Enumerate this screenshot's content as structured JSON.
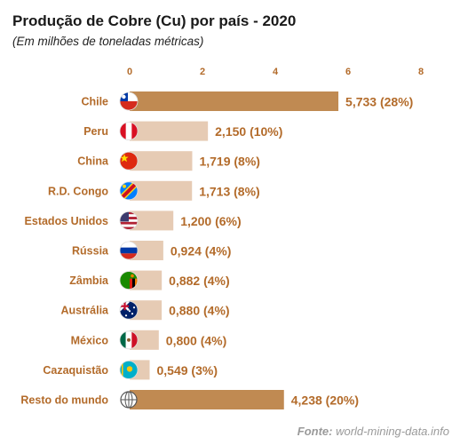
{
  "title": "Produção de Cobre (Cu) por país - 2020",
  "subtitle": "(Em milhões de toneladas métricas)",
  "source": {
    "label": "Fonte:",
    "text": " world-mining-data.info"
  },
  "colors": {
    "highlight_bar": "#c08a52",
    "regular_bar": "#e6cbb4",
    "label_text": "#b36b2a",
    "value_text": "#b36b2a",
    "axis_text": "#b36b2a"
  },
  "chart_data": {
    "type": "bar",
    "orientation": "horizontal",
    "xlim": [
      0,
      8
    ],
    "xticks": [
      0,
      2,
      4,
      6,
      8
    ],
    "grid": false,
    "categories": [
      "Chile",
      "Peru",
      "China",
      "R.D. Congo",
      "Estados Unidos",
      "Rússia",
      "Zâmbia",
      "Austrália",
      "México",
      "Cazaquistão",
      "Resto do mundo"
    ],
    "values": [
      5.733,
      2.15,
      1.719,
      1.713,
      1.2,
      0.924,
      0.882,
      0.88,
      0.8,
      0.549,
      4.238
    ],
    "value_labels": [
      "5,733 (28%)",
      "2,150 (10%)",
      "1,719 (8%)",
      "1,713 (8%)",
      "1,200 (6%)",
      "0,924 (4%)",
      "0,882 (4%)",
      "0,880 (4%)",
      "0,800 (4%)",
      "0,549 (3%)",
      "4,238 (20%)"
    ],
    "highlighted": [
      true,
      false,
      false,
      false,
      false,
      false,
      false,
      false,
      false,
      false,
      true
    ],
    "icons": [
      "flag-chile-icon",
      "flag-peru-icon",
      "flag-china-icon",
      "flag-dr-congo-icon",
      "flag-usa-icon",
      "flag-russia-icon",
      "flag-zambia-icon",
      "flag-australia-icon",
      "flag-mexico-icon",
      "flag-kazakhstan-icon",
      "globe-icon"
    ]
  }
}
